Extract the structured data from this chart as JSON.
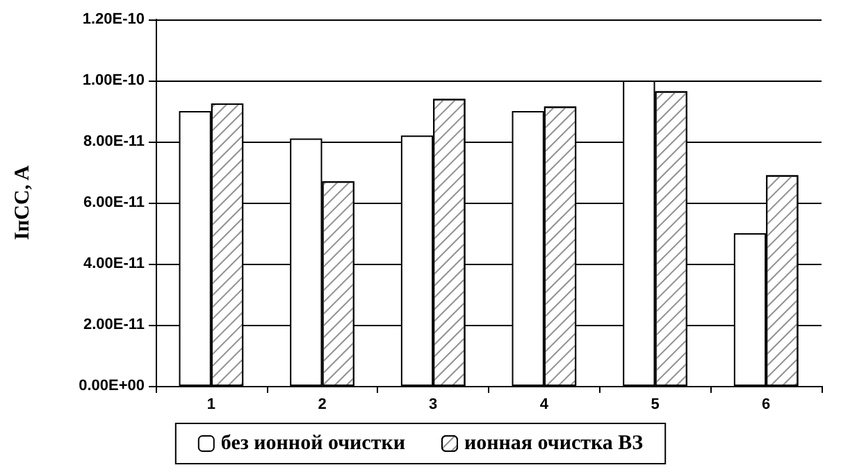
{
  "chart_data": {
    "type": "bar",
    "ylabel": "IпCC, A",
    "categories": [
      "1",
      "2",
      "3",
      "4",
      "5",
      "6"
    ],
    "series": [
      {
        "name": "без ионной очистки",
        "color": "#ffffff",
        "values": [
          9e-11,
          8.1e-11,
          8.2e-11,
          9e-11,
          1e-10,
          5e-11
        ]
      },
      {
        "name": "ионная очистка ВЗ",
        "color": "#ffffff",
        "values": [
          9.25e-11,
          6.7e-11,
          9.4e-11,
          9.15e-11,
          9.65e-11,
          6.9e-11
        ]
      }
    ],
    "ylim": [
      0,
      1.2e-10
    ],
    "yticks": [
      {
        "value": 0,
        "label": "0.00E+00"
      },
      {
        "value": 2e-11,
        "label": "2.00E-11"
      },
      {
        "value": 4e-11,
        "label": "4.00E-11"
      },
      {
        "value": 6e-11,
        "label": "6.00E-11"
      },
      {
        "value": 8e-11,
        "label": "8.00E-11"
      },
      {
        "value": 1e-10,
        "label": "1.00E-10"
      },
      {
        "value": 1.2e-10,
        "label": "1.20E-10"
      }
    ],
    "grid": "y",
    "legend": "bottom"
  }
}
